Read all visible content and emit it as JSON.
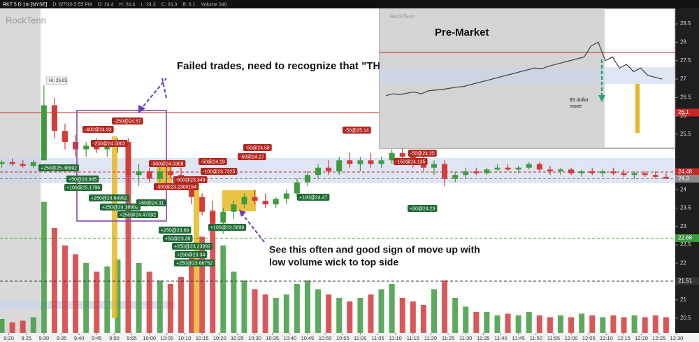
{
  "chart_data": [
    {
      "type": "candlestick",
      "header": [
        "RKT 5 D 1m [NYSE]",
        "D: 6/7/20 5:55 PM",
        "O: 24.4",
        "H: 24.4",
        "L: 24.3",
        "C: 24.3",
        "B: 6.1",
        "Volume 340"
      ],
      "watermark": "RockTenn",
      "high_label": "Hi: 26.85",
      "annotations": [
        "Failed trades, need to recognize that \"THE",
        "See this often and good sign of move up with",
        "low volume wick to top side"
      ],
      "up_color": "#3f9b3f",
      "down_color": "#d43a3a",
      "x": [
        558,
        561,
        564,
        567,
        570,
        573,
        576,
        579,
        582,
        585,
        588,
        591,
        594,
        597,
        600,
        603,
        606,
        609,
        612,
        615,
        618,
        621,
        624,
        627,
        630,
        633,
        636,
        639,
        642,
        645,
        648,
        651,
        654,
        657,
        660,
        663,
        666,
        669,
        672,
        675,
        678,
        681,
        684,
        687,
        690,
        693,
        696,
        699,
        702,
        705,
        708,
        711,
        714,
        717,
        720,
        723,
        726,
        729,
        732,
        735,
        738,
        741,
        744,
        747
      ],
      "open": [
        24.7,
        24.75,
        24.7,
        24.65,
        24.8,
        26.3,
        25.6,
        25.3,
        25.1,
        25.2,
        25.1,
        25.2,
        25.3,
        24.4,
        24.5,
        24.3,
        24.5,
        24.4,
        24.2,
        23.8,
        23.4,
        23.1,
        23.4,
        23.6,
        23.8,
        23.7,
        23.6,
        23.75,
        23.9,
        24.2,
        24.4,
        24.6,
        24.5,
        24.8,
        24.7,
        24.8,
        24.7,
        24.8,
        25.0,
        24.9,
        24.7,
        24.6,
        24.7,
        24.3,
        24.4,
        24.5,
        24.45,
        24.55,
        24.6,
        24.55,
        24.6,
        24.7,
        24.55,
        24.5,
        24.55,
        24.45,
        24.5,
        24.45,
        24.5,
        24.45,
        24.4,
        24.45,
        24.4,
        24.35
      ],
      "high": [
        24.8,
        24.85,
        24.8,
        24.8,
        26.85,
        26.5,
        25.8,
        25.5,
        25.3,
        25.4,
        25.3,
        25.4,
        25.4,
        24.7,
        24.6,
        24.6,
        24.7,
        24.6,
        24.3,
        23.9,
        23.7,
        23.5,
        23.7,
        23.9,
        24.0,
        23.9,
        23.8,
        24.0,
        24.3,
        24.5,
        24.7,
        24.8,
        24.9,
        25.0,
        24.9,
        25.0,
        24.9,
        25.1,
        25.14,
        25.0,
        24.9,
        24.8,
        24.8,
        24.5,
        24.6,
        24.6,
        24.6,
        24.7,
        24.7,
        24.65,
        24.75,
        24.75,
        24.65,
        24.6,
        24.6,
        24.55,
        24.6,
        24.55,
        24.6,
        24.55,
        24.5,
        24.5,
        24.5,
        24.45
      ],
      "low": [
        24.6,
        24.65,
        24.6,
        24.6,
        24.8,
        25.4,
        25.1,
        24.9,
        24.9,
        25.0,
        24.9,
        25.0,
        24.2,
        24.1,
        24.2,
        24.2,
        24.3,
        24.0,
        23.6,
        23.3,
        22.9,
        22.8,
        23.2,
        23.5,
        23.6,
        23.5,
        23.5,
        23.6,
        23.8,
        24.1,
        24.3,
        24.4,
        24.4,
        24.6,
        24.5,
        24.6,
        24.6,
        24.7,
        24.8,
        24.6,
        24.5,
        24.4,
        24.1,
        24.2,
        24.3,
        24.4,
        24.4,
        24.5,
        24.5,
        24.45,
        24.55,
        24.5,
        24.4,
        24.4,
        24.4,
        24.35,
        24.4,
        24.35,
        24.4,
        24.35,
        24.3,
        24.35,
        24.3,
        24.3
      ],
      "close": [
        24.75,
        24.7,
        24.65,
        24.75,
        26.3,
        25.6,
        25.3,
        25.1,
        25.2,
        25.1,
        25.2,
        25.3,
        24.4,
        24.5,
        24.3,
        24.5,
        24.4,
        24.2,
        23.8,
        23.4,
        23.1,
        23.4,
        23.6,
        23.8,
        23.7,
        23.6,
        23.75,
        23.9,
        24.2,
        24.4,
        24.6,
        24.5,
        24.8,
        24.7,
        24.8,
        24.7,
        24.8,
        25.0,
        24.9,
        24.7,
        24.6,
        24.7,
        24.3,
        24.4,
        24.5,
        24.45,
        24.55,
        24.6,
        24.55,
        24.6,
        24.7,
        24.55,
        24.5,
        24.55,
        24.45,
        24.5,
        24.45,
        24.5,
        24.45,
        24.4,
        24.45,
        24.4,
        24.35,
        24.3
      ],
      "volume": [
        8,
        6,
        7,
        9,
        75,
        60,
        50,
        45,
        40,
        35,
        38,
        42,
        95,
        40,
        35,
        30,
        28,
        32,
        45,
        55,
        70,
        50,
        35,
        30,
        25,
        22,
        20,
        22,
        28,
        30,
        25,
        22,
        20,
        18,
        20,
        22,
        25,
        28,
        20,
        18,
        16,
        25,
        30,
        20,
        15,
        12,
        12,
        10,
        11,
        10,
        12,
        10,
        9,
        10,
        9,
        11,
        10,
        9,
        10,
        9,
        10,
        9,
        10,
        9
      ],
      "vlim": [
        0,
        100
      ],
      "xlim": [
        557.5,
        752
      ],
      "ylim": [
        20.1,
        28.9
      ],
      "yticks": [
        20.5,
        21,
        21.5,
        22,
        22.5,
        23,
        23.5,
        24
      ],
      "xticks": [
        {
          "value": 560,
          "label": "9:20"
        },
        {
          "value": 565,
          "label": "9:25"
        },
        {
          "value": 570,
          "label": "9:30"
        },
        {
          "value": 575,
          "label": "9:35"
        },
        {
          "value": 580,
          "label": "9:40"
        },
        {
          "value": 585,
          "label": "9:45"
        },
        {
          "value": 590,
          "label": "9:50"
        },
        {
          "value": 595,
          "label": "9:55"
        },
        {
          "value": 600,
          "label": "10:00"
        },
        {
          "value": 605,
          "label": "10:05"
        },
        {
          "value": 610,
          "label": "10:10"
        },
        {
          "value": 615,
          "label": "10:15"
        },
        {
          "value": 620,
          "label": "10:20"
        },
        {
          "value": 625,
          "label": "10:25"
        },
        {
          "value": 630,
          "label": "10:30"
        },
        {
          "value": 635,
          "label": "10:35"
        },
        {
          "value": 640,
          "label": "10:40"
        },
        {
          "value": 645,
          "label": "10:45"
        },
        {
          "value": 650,
          "label": "10:50"
        },
        {
          "value": 655,
          "label": "10:55"
        },
        {
          "value": 660,
          "label": "11:00"
        },
        {
          "value": 665,
          "label": "11:05"
        },
        {
          "value": 670,
          "label": "11:10"
        },
        {
          "value": 675,
          "label": "11:15"
        },
        {
          "value": 680,
          "label": "11:20"
        },
        {
          "value": 685,
          "label": "11:25"
        },
        {
          "value": 690,
          "label": "11:30"
        },
        {
          "value": 695,
          "label": "11:35"
        },
        {
          "value": 700,
          "label": "11:40"
        },
        {
          "value": 705,
          "label": "11:45"
        },
        {
          "value": 710,
          "label": "11:50"
        },
        {
          "value": 715,
          "label": "11:55"
        },
        {
          "value": 720,
          "label": "12:00"
        },
        {
          "value": 725,
          "label": "12:05"
        },
        {
          "value": 730,
          "label": "12:10"
        },
        {
          "value": 735,
          "label": "12:15"
        },
        {
          "value": 740,
          "label": "12:20"
        },
        {
          "value": 745,
          "label": "12:25"
        },
        {
          "value": 750,
          "label": "12:30"
        }
      ],
      "levels": [
        26.1,
        24.48,
        24.3,
        22.68,
        21.51
      ],
      "level_colors": [
        "#c62828",
        "#c62828",
        "#8a8a8a",
        "#3c9a3c",
        "#333333"
      ],
      "level_styles": [
        "solid",
        "dash",
        "dash",
        "dash",
        "dash"
      ],
      "trades": [
        {
          "label": "-250@24.57",
          "color": "#b3261e"
        },
        {
          "label": "-400@24.93",
          "color": "#b3261e"
        },
        {
          "label": "-250@24.5802",
          "color": "#b3261e"
        },
        {
          "label": "-300@24.0308",
          "color": "#b3261e"
        },
        {
          "label": "-300@23.2300154",
          "color": "#b3261e"
        },
        {
          "label": "-500@23.349",
          "color": "#b3261e"
        },
        {
          "label": "-50@24.19",
          "color": "#b3261e"
        },
        {
          "label": "-100@23.7325",
          "color": "#b3261e"
        },
        {
          "label": "-50@24.58",
          "color": "#b3261e"
        },
        {
          "label": "-50@24.27",
          "color": "#b3261e"
        },
        {
          "label": "-50@25.14",
          "color": "#b3261e"
        },
        {
          "label": "-50@24.25",
          "color": "#b3261e"
        },
        {
          "label": "-150@24.135",
          "color": "#b3261e"
        },
        {
          "label": "+250@25.48992",
          "color": "#1f6b35"
        },
        {
          "label": "+50@24.945",
          "color": "#1f6b35"
        },
        {
          "label": "+100@25.1796",
          "color": "#1f6b35"
        },
        {
          "label": "+250@24.64992",
          "color": "#1f6b35"
        },
        {
          "label": "+250@24.38992",
          "color": "#1f6b35"
        },
        {
          "label": "+50@24.31",
          "color": "#1f6b35"
        },
        {
          "label": "+250@24.47392",
          "color": "#1f6b35"
        },
        {
          "label": "+250@23.69",
          "color": "#1f6b35"
        },
        {
          "label": "+50@23.39",
          "color": "#1f6b35"
        },
        {
          "label": "+250@23.23992",
          "color": "#1f6b35"
        },
        {
          "label": "+250@23.34",
          "color": "#1f6b35"
        },
        {
          "label": "+250@23.66752",
          "color": "#1f6b35"
        },
        {
          "label": "+100@23.5699",
          "color": "#1f6b35"
        },
        {
          "label": "+100@24.47",
          "color": "#1f6b35"
        },
        {
          "label": "+50@24.23",
          "color": "#1f6b35"
        }
      ]
    },
    {
      "type": "line",
      "title": "Pre-Market",
      "watermark": "RockTenn",
      "annotations": [
        "$3 dollar",
        "move"
      ],
      "color": "#4a4a4a",
      "values": [
        26.55,
        26.6,
        26.58,
        26.62,
        26.65,
        26.6,
        26.68,
        26.7,
        26.72,
        26.75,
        26.78,
        26.8,
        26.85,
        26.9,
        26.95,
        27.0,
        27.05,
        27.1,
        27.15,
        27.2,
        27.25,
        27.3,
        27.28,
        27.35,
        27.4,
        27.45,
        27.5,
        27.55,
        27.6,
        27.9,
        28.0,
        27.5,
        27.6,
        27.3,
        27.4,
        27.2,
        27.3,
        27.1,
        27.05,
        27.0
      ],
      "ylim": [
        25.12,
        28.92
      ],
      "yticks": [
        25.5,
        26,
        26.5,
        27,
        27.5,
        28,
        28.5
      ]
    }
  ]
}
